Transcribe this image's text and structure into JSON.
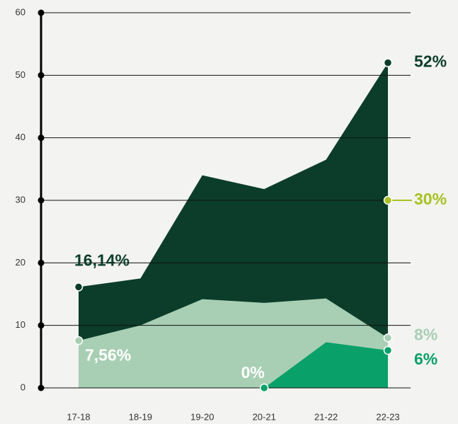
{
  "chart_data": {
    "type": "area",
    "categories": [
      "17-18",
      "18-19",
      "19-20",
      "20-21",
      "21-22",
      "22-23"
    ],
    "series": [
      {
        "color": "#0b3d2a",
        "values": [
          16.14,
          17.5,
          34,
          31.8,
          36.5,
          52
        ],
        "value_labels": [
          "16,14%",
          null,
          null,
          null,
          null,
          "52%"
        ]
      },
      {
        "color": "#a8cfb4",
        "values": [
          7.56,
          10,
          14.2,
          13.6,
          14.3,
          8
        ],
        "value_labels": [
          "7,56%",
          null,
          null,
          null,
          null,
          "8%"
        ]
      },
      {
        "color": "#0aa06a",
        "values": [
          null,
          null,
          null,
          0,
          7.3,
          6
        ],
        "value_labels": [
          null,
          null,
          null,
          "0%",
          null,
          "6%"
        ]
      },
      {
        "color": "#a7c224",
        "values": [
          null,
          null,
          null,
          null,
          null,
          30
        ],
        "value_labels": [
          null,
          null,
          null,
          null,
          null,
          "30%"
        ]
      }
    ],
    "ylim": [
      0,
      60
    ],
    "yticks": [
      0,
      10,
      20,
      30,
      40,
      50,
      60
    ],
    "grid": true
  }
}
